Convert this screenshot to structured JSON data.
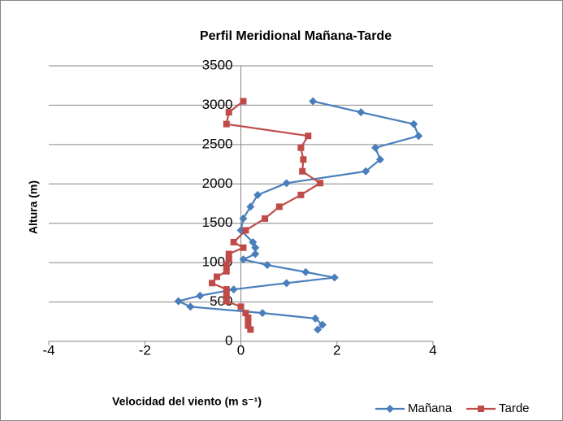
{
  "chart_data": {
    "type": "line",
    "title": "Perfil Meridional Mañana-Tarde",
    "xlabel": "Velocidad del viento (m s⁻¹)",
    "ylabel": "Altura (m)",
    "xlim": [
      -4,
      4
    ],
    "xticks": [
      -4,
      -2,
      0,
      2,
      4
    ],
    "ylim": [
      0,
      3500
    ],
    "yticks": [
      0,
      500,
      1000,
      1500,
      2000,
      2500,
      3000,
      3500
    ],
    "grid": true,
    "legend": "bottom-right",
    "series": [
      {
        "name": "Mañana",
        "color": "#4a7ebb",
        "marker": "diamond",
        "x": [
          1.5,
          2.5,
          3.6,
          3.7,
          2.8,
          2.9,
          2.6,
          0.95,
          0.35,
          0.2,
          0.05,
          0.0,
          0.25,
          0.3,
          0.3,
          0.05,
          0.55,
          1.35,
          1.95,
          0.95,
          -0.15,
          -0.85,
          -1.3,
          -1.05,
          0.45,
          1.55,
          1.7,
          1.6
        ],
        "values": [
          3050,
          2910,
          2760,
          2610,
          2460,
          2310,
          2160,
          2010,
          1860,
          1710,
          1560,
          1410,
          1260,
          1190,
          1110,
          1040,
          970,
          880,
          810,
          740,
          660,
          580,
          510,
          440,
          360,
          290,
          210,
          150
        ]
      },
      {
        "name": "Tarde",
        "color": "#be4b48",
        "marker": "square",
        "x": [
          0.05,
          -0.25,
          -0.3,
          1.4,
          1.25,
          1.3,
          1.28,
          1.65,
          1.25,
          0.8,
          0.5,
          0.1,
          -0.15,
          0.05,
          -0.25,
          -0.25,
          -0.3,
          -0.3,
          -0.5,
          -0.6,
          -0.3,
          -0.3,
          -0.3,
          0.0,
          0.1,
          0.15,
          0.15,
          0.15,
          0.2
        ],
        "values": [
          3050,
          2910,
          2760,
          2610,
          2460,
          2310,
          2160,
          2010,
          1860,
          1710,
          1560,
          1410,
          1260,
          1190,
          1110,
          1040,
          970,
          890,
          820,
          740,
          660,
          580,
          510,
          440,
          360,
          300,
          250,
          200,
          150
        ]
      }
    ]
  }
}
